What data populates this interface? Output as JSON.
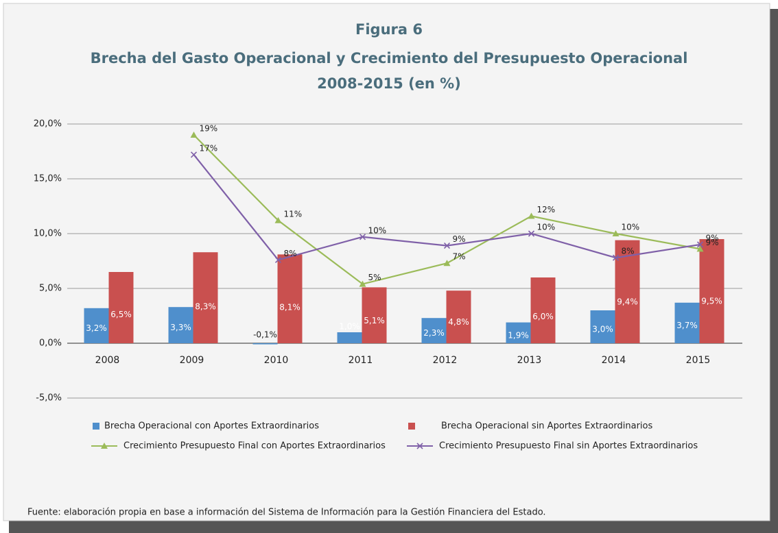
{
  "chart_data": {
    "type": "bar_line",
    "title": "Figura 6",
    "subtitle": [
      "Brecha del Gasto Operacional y Crecimiento del Presupuesto Operacional",
      "2008-2015 (en %)"
    ],
    "source": "Fuente: elaboración propia en base a información del Sistema de Información para la Gestión Financiera del Estado.",
    "categories": [
      "2008",
      "2009",
      "2010",
      "2011",
      "2012",
      "2013",
      "2014",
      "2015"
    ],
    "ylim": [
      -5,
      20
    ],
    "yticks": [
      {
        "value": -5,
        "label": "-5,0%"
      },
      {
        "value": 0,
        "label": "0,0%"
      },
      {
        "value": 5,
        "label": "5,0%"
      },
      {
        "value": 10,
        "label": "10,0%"
      },
      {
        "value": 15,
        "label": "15,0%"
      },
      {
        "value": 20,
        "label": "20,0%"
      }
    ],
    "grid": true,
    "series": [
      {
        "name": "Brecha Operacional con Aportes Extraordinarios",
        "type": "bar",
        "color": "#4f8fcc",
        "values": [
          3.2,
          3.3,
          -0.1,
          1.0,
          2.3,
          1.9,
          3.0,
          3.7
        ],
        "value_labels": [
          "3,2%",
          "3,3%",
          "-0,1%",
          "1,0%",
          "2,3%",
          "1,9%",
          "3,0%",
          "3,7%"
        ]
      },
      {
        "name": "Brecha Operacional sin Aportes Extraordinarios",
        "type": "bar",
        "color": "#c9504f",
        "values": [
          6.5,
          8.3,
          8.1,
          5.1,
          4.8,
          6.0,
          9.4,
          9.5
        ],
        "value_labels": [
          "6,5%",
          "8,3%",
          "8,1%",
          "5,1%",
          "4,8%",
          "6,0%",
          "9,4%",
          "9,5%"
        ]
      },
      {
        "name": "Crecimiento Presupuesto Final con Aportes Extraordinarios",
        "type": "line",
        "color": "#9bbb59",
        "marker": "triangle",
        "values": [
          null,
          19.0,
          11.2,
          5.4,
          7.3,
          11.6,
          10.0,
          8.6
        ],
        "value_labels": [
          null,
          "19%",
          "11%",
          "5%",
          "7%",
          "12%",
          "10%",
          "9%"
        ]
      },
      {
        "name": "Crecimiento Presupuesto Final sin Aportes Extraordinarios",
        "type": "line",
        "color": "#7f60a8",
        "marker": "x",
        "values": [
          null,
          17.2,
          7.6,
          9.7,
          8.9,
          10.0,
          7.8,
          9.0
        ],
        "value_labels": [
          null,
          "17%",
          "8%",
          "10%",
          "9%",
          "10%",
          "8%",
          "9%"
        ]
      }
    ]
  }
}
